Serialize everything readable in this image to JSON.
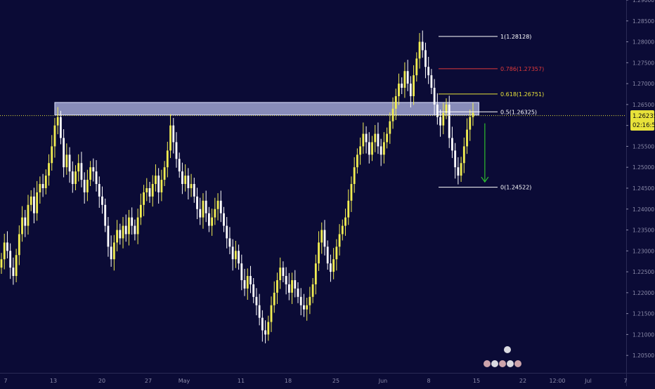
{
  "theme": {
    "background": "#0b0b36",
    "bull": "#f2ee52",
    "bear": "#ffffff",
    "fib_line": "#ffffff",
    "fib_786": "#e03a3a",
    "fib_618": "#e8e23a",
    "price_line": "#e8e23a",
    "zone_fill": "#b3b8e6",
    "arrow": "#2fbf2f",
    "axis_text": "#8a8aa8"
  },
  "price_tag": {
    "price": "1.26235",
    "countdown": "02:16:55"
  },
  "chart_data": {
    "type": "candlestick",
    "ylim": [
      1.201,
      1.29
    ],
    "yticks": [
      "1.20500",
      "1.21000",
      "1.21500",
      "1.22000",
      "1.22500",
      "1.23000",
      "1.23500",
      "1.24000",
      "1.24500",
      "1.25000",
      "1.25500",
      "1.26000",
      "1.26500",
      "1.27000",
      "1.27500",
      "1.28000",
      "1.28500",
      "1.29000"
    ],
    "xticks": [
      "7",
      "13",
      "20",
      "27",
      "May",
      "11",
      "18",
      "25",
      "Jun",
      "8",
      "15",
      "22",
      "12:00",
      "Jul",
      "7"
    ],
    "current_price": 1.26235,
    "fib_levels": [
      {
        "label": "1(1.28128)",
        "value": 1.28128,
        "style": "fib_line"
      },
      {
        "label": "0.786(1.27357)",
        "value": 1.27357,
        "style": "fib_786"
      },
      {
        "label": "0.618(1.26751)",
        "value": 1.26751,
        "style": "fib_618"
      },
      {
        "label": "0.5(1.26325)",
        "value": 1.26325,
        "style": "fib_line"
      },
      {
        "label": "0(1.24522)",
        "value": 1.24522,
        "style": "fib_line"
      }
    ],
    "zone": {
      "from_bar": 18,
      "to_bar": 161,
      "low": 1.2625,
      "high": 1.2655
    },
    "arrow": {
      "bar": 163,
      "from": 1.2605,
      "to": 1.2465
    },
    "closes": [
      1.228,
      1.232,
      1.23,
      1.226,
      1.224,
      1.229,
      1.234,
      1.238,
      1.236,
      1.241,
      1.243,
      1.239,
      1.244,
      1.246,
      1.245,
      1.248,
      1.251,
      1.255,
      1.26,
      1.262,
      1.257,
      1.25,
      1.253,
      1.249,
      1.246,
      1.249,
      1.251,
      1.247,
      1.244,
      1.247,
      1.25,
      1.249,
      1.246,
      1.243,
      1.241,
      1.236,
      1.231,
      1.228,
      1.232,
      1.235,
      1.233,
      1.236,
      1.234,
      1.238,
      1.236,
      1.234,
      1.238,
      1.241,
      1.244,
      1.245,
      1.243,
      1.246,
      1.248,
      1.244,
      1.247,
      1.25,
      1.254,
      1.26,
      1.256,
      1.252,
      1.249,
      1.246,
      1.248,
      1.245,
      1.246,
      1.243,
      1.24,
      1.238,
      1.242,
      1.239,
      1.236,
      1.238,
      1.24,
      1.242,
      1.239,
      1.236,
      1.233,
      1.231,
      1.228,
      1.23,
      1.227,
      1.223,
      1.221,
      1.224,
      1.222,
      1.219,
      1.217,
      1.214,
      1.211,
      1.21,
      1.213,
      1.217,
      1.22,
      1.223,
      1.226,
      1.224,
      1.222,
      1.22,
      1.223,
      1.221,
      1.219,
      1.217,
      1.216,
      1.217,
      1.219,
      1.222,
      1.227,
      1.232,
      1.235,
      1.231,
      1.227,
      1.225,
      1.228,
      1.231,
      1.234,
      1.236,
      1.238,
      1.242,
      1.246,
      1.25,
      1.253,
      1.255,
      1.258,
      1.256,
      1.253,
      1.256,
      1.258,
      1.255,
      1.253,
      1.256,
      1.258,
      1.261,
      1.264,
      1.267,
      1.27,
      1.269,
      1.273,
      1.27,
      1.267,
      1.272,
      1.276,
      1.28,
      1.278,
      1.274,
      1.272,
      1.269,
      1.265,
      1.262,
      1.26,
      1.263,
      1.265,
      1.257,
      1.254,
      1.25,
      1.248,
      1.251,
      1.255,
      1.259,
      1.262,
      1.263
    ]
  }
}
